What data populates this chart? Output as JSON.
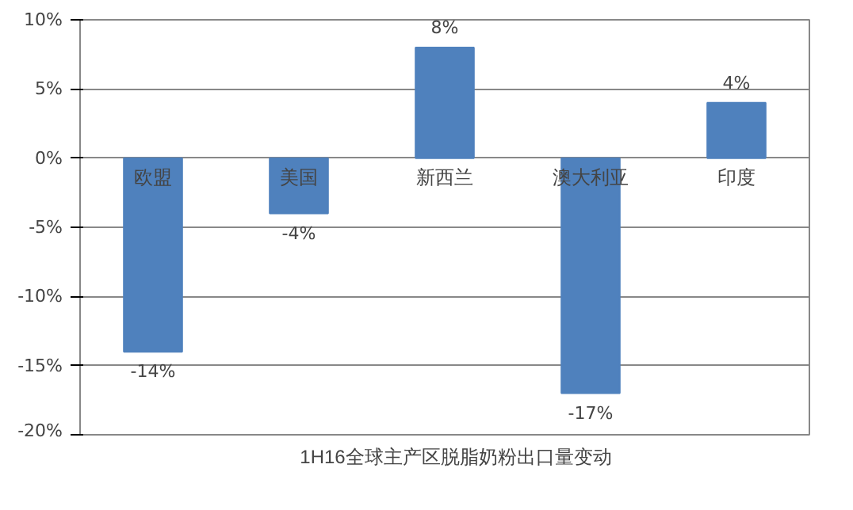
{
  "chart_data": {
    "type": "bar",
    "categories": [
      "欧盟",
      "美国",
      "新西兰",
      "澳大利亚",
      "印度"
    ],
    "series": [
      {
        "name": "1H16全球主产区脱脂奶粉出口量变动",
        "color": "#4f81bd",
        "values": [
          -14,
          -4,
          8,
          -17,
          4
        ],
        "value_labels": [
          "-14%",
          "-4%",
          "8%",
          "-17%",
          "4%"
        ]
      }
    ],
    "ylim": [
      -20,
      10
    ],
    "yticks": [
      {
        "value": -20,
        "label": "-20%"
      },
      {
        "value": -15,
        "label": "-15%"
      },
      {
        "value": -10,
        "label": "-10%"
      },
      {
        "value": -5,
        "label": "-5%"
      },
      {
        "value": 0,
        "label": "0%"
      },
      {
        "value": 5,
        "label": "5%"
      },
      {
        "value": 10,
        "label": "10%"
      }
    ],
    "grid": "y",
    "legend": "bottom"
  }
}
